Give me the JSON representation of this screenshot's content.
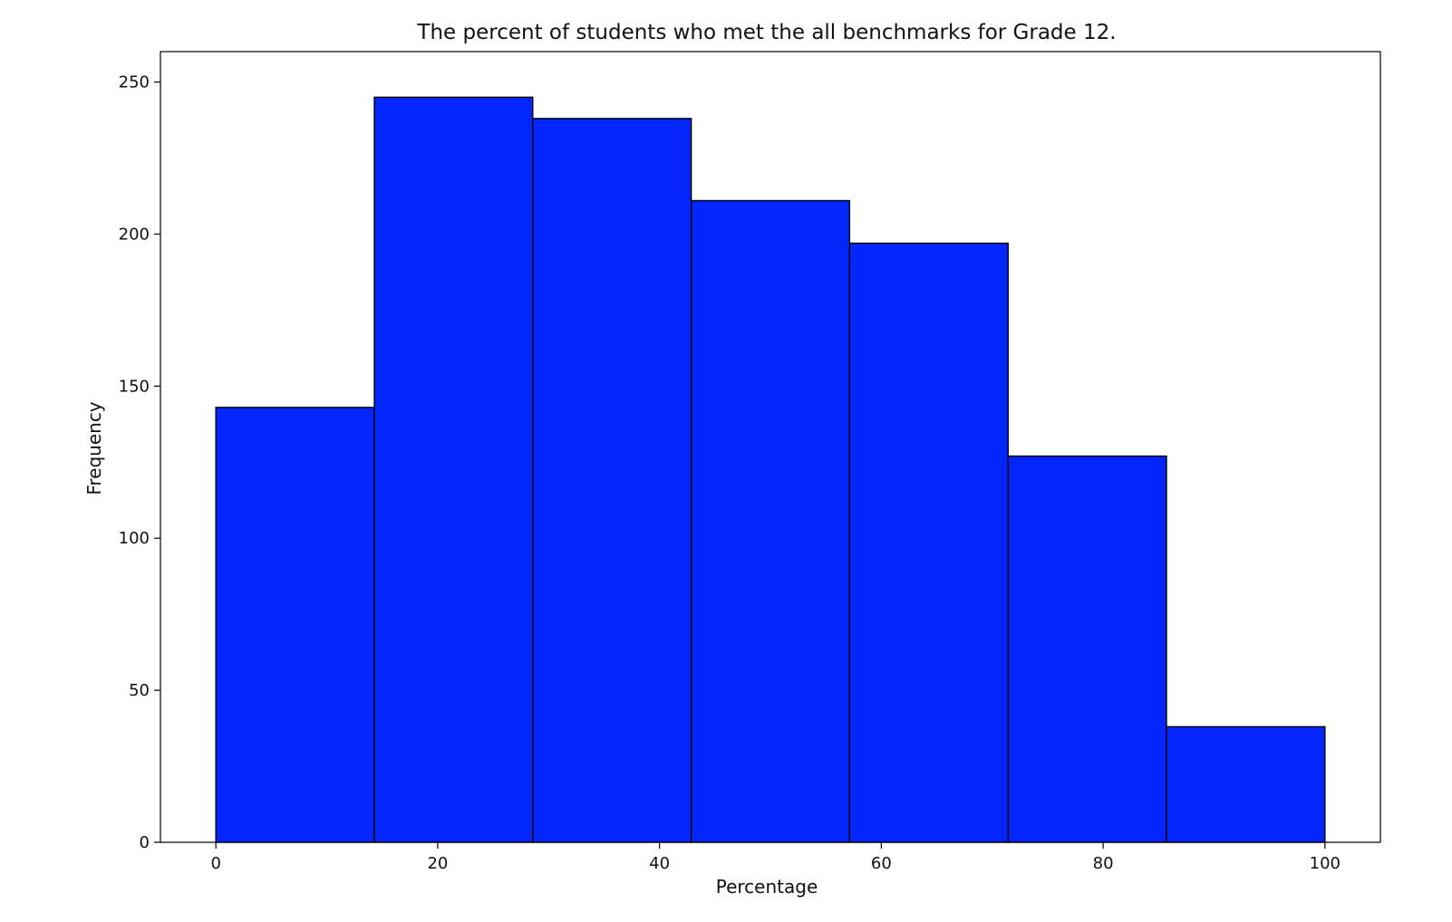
{
  "chart_data": {
    "type": "bar",
    "title": "The percent of students who met the all benchmarks for Grade 12.",
    "xlabel": "Percentage",
    "ylabel": "Frequency",
    "bins": [
      {
        "start": 0,
        "end": 14.29,
        "count": 143
      },
      {
        "start": 14.29,
        "end": 28.57,
        "count": 245
      },
      {
        "start": 28.57,
        "end": 42.86,
        "count": 238
      },
      {
        "start": 42.86,
        "end": 57.14,
        "count": 211
      },
      {
        "start": 57.14,
        "end": 71.43,
        "count": 197
      },
      {
        "start": 71.43,
        "end": 85.71,
        "count": 127
      },
      {
        "start": 85.71,
        "end": 100,
        "count": 38
      }
    ],
    "xlim": [
      -5,
      105
    ],
    "ylim": [
      0,
      260
    ],
    "xticks": [
      0,
      20,
      40,
      60,
      80,
      100
    ],
    "yticks": [
      0,
      50,
      100,
      150,
      200,
      250
    ],
    "bar_color": "#0327fb",
    "edge_color": "#000000",
    "grid": false,
    "legend": "none"
  }
}
